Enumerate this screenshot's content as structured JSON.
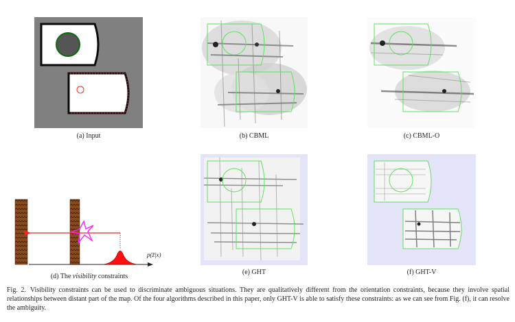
{
  "subfigures": {
    "a": {
      "label": "(a) Input"
    },
    "b": {
      "label_prefix": "(b)",
      "method": "CBML"
    },
    "c": {
      "label_prefix": "(c)",
      "method": "CBML-O"
    },
    "d": {
      "label_prefix": "(d) The",
      "emph": "visibility",
      "label_suffix": "constraints",
      "axis_label": "p(z̃|x)"
    },
    "e": {
      "label_prefix": "(e)",
      "method": "GHT"
    },
    "f": {
      "label_prefix": "(f)",
      "method": "GHT-V"
    }
  },
  "caption": {
    "label": "Fig. 2.",
    "part1": "Visibility constraints can be used to discriminate ambiguous situations. They are qualitatively different from the orientation constraints, because they involve spatial relationships between distant part of the map. Of the four algorithms described in this paper, only",
    "method": "GHT-V",
    "part2": "is able to satisfy these constraints: as we can see from Fig. (f), it can resolve the ambiguity."
  },
  "colors": {
    "map_gray": "#808080",
    "outline_green": "#5ee05e",
    "background_lavender": "#e4e4f8",
    "wall_brown": "#8b4a1a",
    "ray_red": "#ff2020",
    "star_magenta": "#ff20ff"
  }
}
